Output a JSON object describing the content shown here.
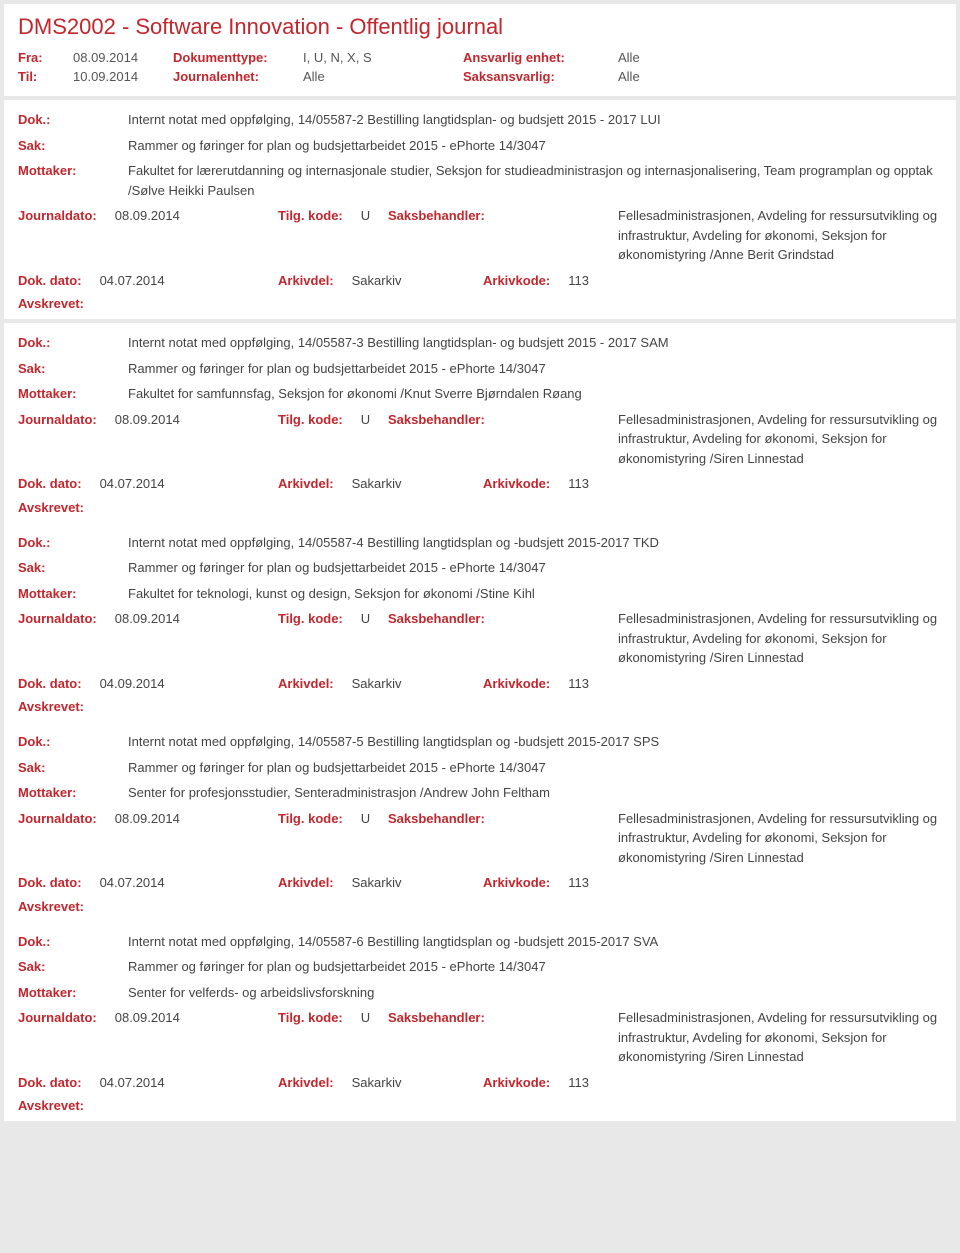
{
  "header": {
    "title": "DMS2002 - Software Innovation - Offentlig journal",
    "fra_label": "Fra:",
    "fra_value": "08.09.2014",
    "til_label": "Til:",
    "til_value": "10.09.2014",
    "doktype_label": "Dokumenttype:",
    "doktype_value": "I, U, N, X, S",
    "journalenhet_label": "Journalenhet:",
    "journalenhet_value": "Alle",
    "ansvarlig_label": "Ansvarlig enhet:",
    "ansvarlig_value": "Alle",
    "saksansvarlig_label": "Saksansvarlig:",
    "saksansvarlig_value": "Alle"
  },
  "labels": {
    "dok": "Dok.:",
    "sak": "Sak:",
    "mottaker": "Mottaker:",
    "journaldato": "Journaldato:",
    "tilgkode": "Tilg. kode:",
    "saksbehandler": "Saksbehandler:",
    "dokdato": "Dok. dato:",
    "arkivdel": "Arkivdel:",
    "arkivkode": "Arkivkode:",
    "avskrevet": "Avskrevet:"
  },
  "entries": [
    {
      "dok": "Internt notat med oppfølging, 14/05587-2 Bestilling langtidsplan- og budsjett 2015 - 2017 LUI",
      "sak": "Rammer og føringer for plan og budsjettarbeidet 2015 - ePhorte 14/3047",
      "mottaker": "Fakultet for lærerutdanning og internasjonale studier, Seksjon for studieadministrasjon og internasjonalisering, Team programplan og opptak /Sølve Heikki Paulsen",
      "journaldato": "08.09.2014",
      "tilgkode": "U",
      "saksbehandler": "Fellesadministrasjonen, Avdeling for ressursutvikling og infrastruktur, Avdeling for økonomi, Seksjon for økonomistyring /Anne Berit Grindstad",
      "dokdato": "04.07.2014",
      "arkivdel": "Sakarkiv",
      "arkivkode": "113"
    },
    {
      "dok": "Internt notat med oppfølging, 14/05587-3 Bestilling langtidsplan- og budsjett 2015 - 2017 SAM",
      "sak": "Rammer og føringer for plan og budsjettarbeidet 2015 - ePhorte 14/3047",
      "mottaker": "Fakultet for samfunnsfag, Seksjon for økonomi /Knut Sverre Bjørndalen Røang",
      "journaldato": "08.09.2014",
      "tilgkode": "U",
      "saksbehandler": "Fellesadministrasjonen, Avdeling for ressursutvikling og infrastruktur, Avdeling for økonomi, Seksjon for økonomistyring /Siren Linnestad",
      "dokdato": "04.07.2014",
      "arkivdel": "Sakarkiv",
      "arkivkode": "113"
    },
    {
      "dok": "Internt notat med oppfølging, 14/05587-4 Bestilling langtidsplan og -budsjett 2015-2017 TKD",
      "sak": "Rammer og føringer for plan og budsjettarbeidet 2015 - ePhorte 14/3047",
      "mottaker": "Fakultet for teknologi, kunst og design, Seksjon for økonomi /Stine Kihl",
      "journaldato": "08.09.2014",
      "tilgkode": "U",
      "saksbehandler": "Fellesadministrasjonen, Avdeling for ressursutvikling og infrastruktur, Avdeling for økonomi, Seksjon for økonomistyring /Siren Linnestad",
      "dokdato": "04.09.2014",
      "arkivdel": "Sakarkiv",
      "arkivkode": "113"
    },
    {
      "dok": "Internt notat med oppfølging, 14/05587-5 Bestilling langtidsplan og -budsjett 2015-2017 SPS",
      "sak": "Rammer og føringer for plan og budsjettarbeidet 2015 - ePhorte 14/3047",
      "mottaker": "Senter for profesjonsstudier, Senteradministrasjon /Andrew John Feltham",
      "journaldato": "08.09.2014",
      "tilgkode": "U",
      "saksbehandler": "Fellesadministrasjonen, Avdeling for ressursutvikling og infrastruktur, Avdeling for økonomi, Seksjon for økonomistyring /Siren Linnestad",
      "dokdato": "04.07.2014",
      "arkivdel": "Sakarkiv",
      "arkivkode": "113"
    },
    {
      "dok": "Internt notat med oppfølging, 14/05587-6 Bestilling langtidsplan og -budsjett 2015-2017 SVA",
      "sak": "Rammer og føringer for plan og budsjettarbeidet 2015 - ePhorte 14/3047",
      "mottaker": "Senter for velferds- og arbeidslivsforskning",
      "journaldato": "08.09.2014",
      "tilgkode": "U",
      "saksbehandler": "Fellesadministrasjonen, Avdeling for ressursutvikling og infrastruktur, Avdeling for økonomi, Seksjon for økonomistyring /Siren Linnestad",
      "dokdato": "04.07.2014",
      "arkivdel": "Sakarkiv",
      "arkivkode": "113"
    }
  ]
}
